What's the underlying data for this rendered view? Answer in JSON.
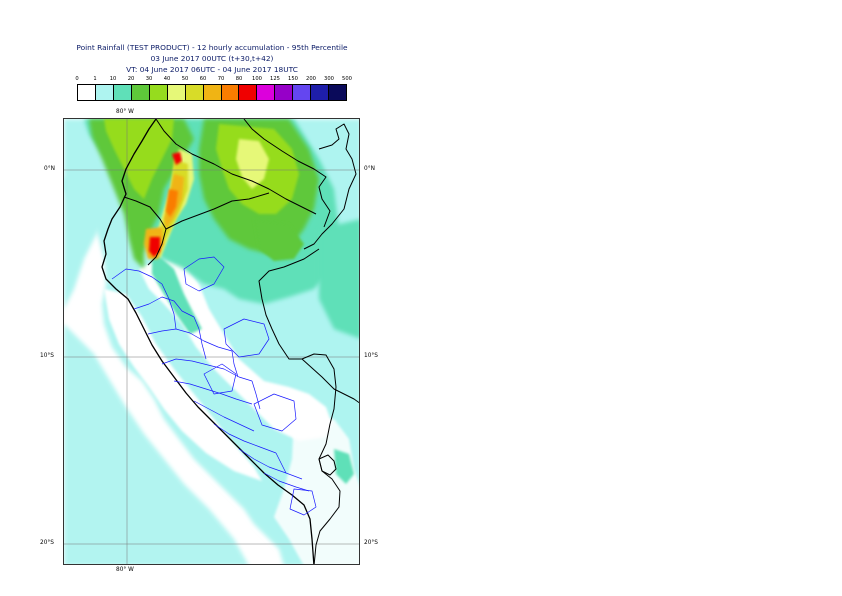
{
  "titles": {
    "line1": "Point Rainfall (TEST PRODUCT) - 12 hourly accumulation - 95th Percentile",
    "line2": "03 June 2017 00UTC (t+30,t+42)",
    "line3": "VT: 04 June 2017 06UTC - 04 June 2017 18UTC"
  },
  "legend": {
    "labels": [
      "0",
      "1",
      "10",
      "20",
      "30",
      "40",
      "50",
      "60",
      "70",
      "80",
      "100",
      "125",
      "150",
      "200",
      "300",
      "500"
    ],
    "colors": [
      "#ffffff",
      "#aef4f0",
      "#5fe0b8",
      "#5ec83a",
      "#96dc1e",
      "#e6f878",
      "#d8dc28",
      "#f0b414",
      "#fa7d00",
      "#f00000",
      "#dc00dc",
      "#9600c8",
      "#6446f0",
      "#1e1eaa",
      "#0a0a5a"
    ]
  },
  "map": {
    "lon_labels": {
      "top": "80° W",
      "bottom": "80° W"
    },
    "lat_labels": [
      {
        "left": "0°N",
        "right": "0°N"
      },
      {
        "left": "10°S",
        "right": "10°S"
      },
      {
        "left": "20°S",
        "right": "20°S"
      }
    ]
  }
}
